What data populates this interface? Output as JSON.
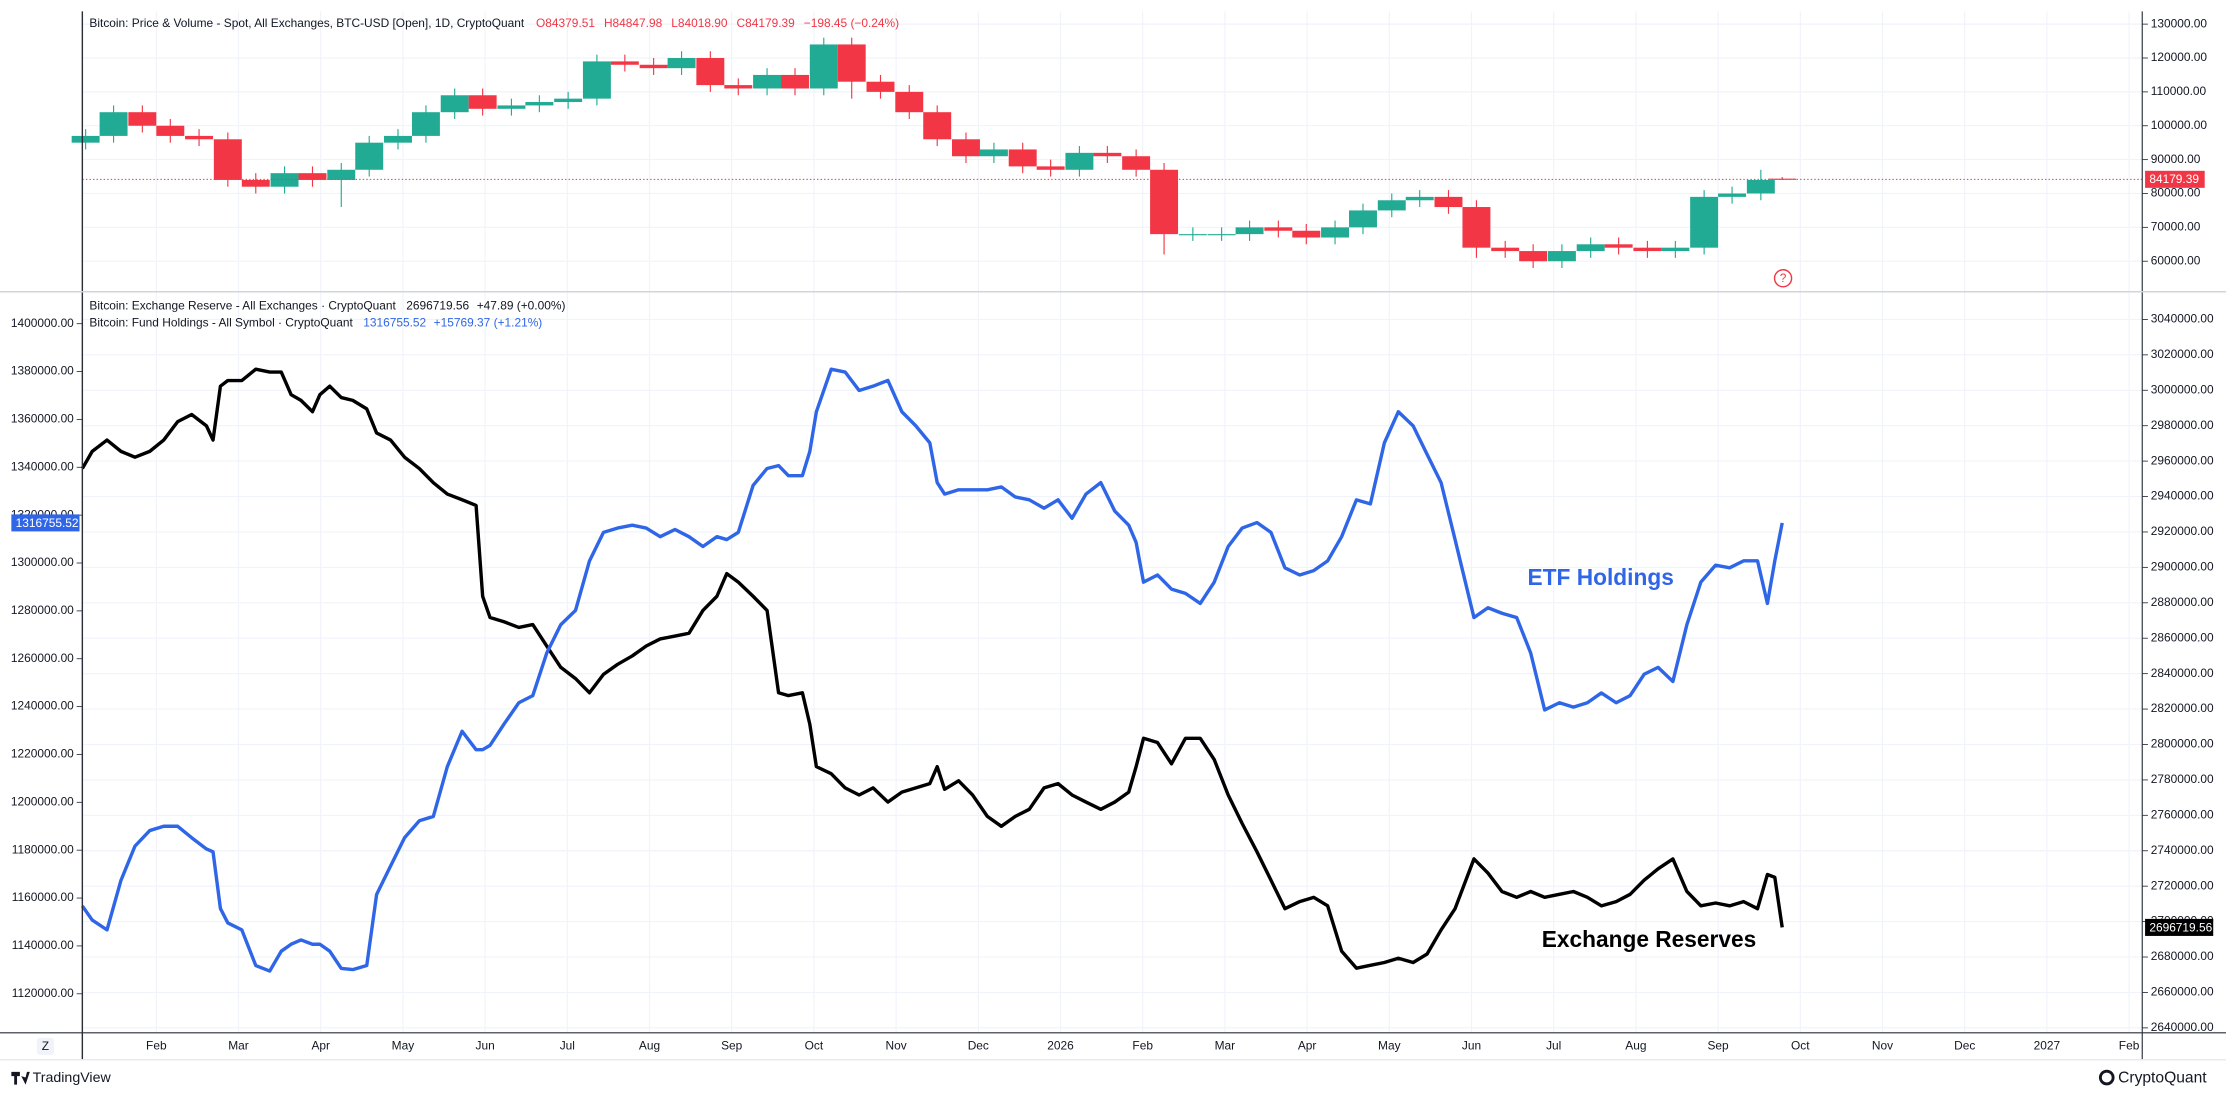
{
  "chart_data": [
    {
      "type": "candlestick",
      "title": "Bitcoin: Price & Volume - Spot, All Exchanges, BTC-USD [Open], 1D, CryptoQuant",
      "ohlc_labels": [
        "O",
        "H",
        "L",
        "C"
      ],
      "legend_labels": [
        "84379.51",
        "84847.98",
        "84018.90",
        "84179.39"
      ],
      "change": "−198.45 (−0.24%)",
      "up_color": "#22ab94",
      "down_color": "#f23645",
      "x": [
        0.14,
        0.48,
        0.83,
        1.17,
        1.52,
        1.87,
        2.21,
        2.56,
        2.9,
        3.25,
        3.59,
        3.94,
        4.28,
        4.63,
        4.97,
        5.32,
        5.66,
        6.01,
        6.36,
        6.7,
        7.05,
        7.39,
        7.74,
        8.08,
        8.43,
        8.77,
        9.12,
        9.46,
        9.81,
        10.16,
        10.5,
        10.85,
        11.19,
        11.54,
        11.88,
        12.23,
        12.57,
        12.92,
        13.26,
        13.61,
        13.96,
        14.3,
        14.65,
        14.99,
        15.34,
        15.68,
        16.03,
        16.37,
        16.72,
        17.06,
        17.41,
        17.75,
        18.1,
        18.45,
        18.79,
        19.14,
        19.48,
        19.83,
        20.17,
        20.52,
        20.78
      ],
      "open": [
        95000,
        97000,
        104000,
        100000,
        97000,
        96000,
        84000,
        82000,
        86000,
        84000,
        87000,
        95000,
        97000,
        104000,
        109000,
        105000,
        106000,
        107000,
        108000,
        119000,
        118000,
        117000,
        120000,
        112000,
        111000,
        115000,
        111000,
        124000,
        113000,
        110000,
        104000,
        96000,
        91000,
        93000,
        88000,
        87000,
        92000,
        91000,
        87000,
        68000,
        68000,
        68000,
        70000,
        69000,
        67000,
        70000,
        75000,
        78000,
        79000,
        76000,
        64000,
        63000,
        60000,
        63000,
        65000,
        64000,
        63000,
        64000,
        79000,
        80000,
        84379.51
      ],
      "high": [
        99000,
        106000,
        106000,
        102000,
        99000,
        98000,
        86000,
        88000,
        88000,
        89000,
        97000,
        99000,
        106000,
        111000,
        111000,
        108000,
        109000,
        110000,
        121000,
        121000,
        120000,
        122000,
        122000,
        114000,
        117000,
        117000,
        126000,
        126000,
        115000,
        112000,
        106000,
        98000,
        95000,
        95000,
        90000,
        94000,
        94000,
        93000,
        89000,
        70000,
        70000,
        72000,
        72000,
        71000,
        72000,
        77000,
        80000,
        81000,
        81000,
        78000,
        66000,
        65000,
        65000,
        67000,
        67000,
        66000,
        66000,
        81000,
        82000,
        87000,
        84847.98
      ],
      "low": [
        93000,
        95000,
        98000,
        95000,
        94000,
        82000,
        80000,
        80000,
        82000,
        76000,
        85000,
        93000,
        95000,
        102000,
        103000,
        103000,
        104000,
        105000,
        106000,
        116000,
        115000,
        115000,
        110000,
        109000,
        109000,
        109000,
        109000,
        108000,
        108000,
        102000,
        94000,
        89000,
        89000,
        86000,
        85000,
        85000,
        89000,
        85000,
        62000,
        66000,
        66000,
        66000,
        67000,
        65000,
        65000,
        68000,
        73000,
        76000,
        74000,
        61000,
        61000,
        58000,
        58000,
        61000,
        62000,
        61000,
        61000,
        62000,
        77000,
        78000,
        84018.9
      ],
      "close": [
        97000,
        104000,
        100000,
        97000,
        96000,
        84000,
        82000,
        86000,
        84000,
        87000,
        95000,
        97000,
        104000,
        109000,
        105000,
        106000,
        107000,
        108000,
        119000,
        118000,
        117000,
        120000,
        112000,
        111000,
        115000,
        111000,
        124000,
        113000,
        110000,
        104000,
        96000,
        91000,
        93000,
        88000,
        87000,
        92000,
        91000,
        87000,
        68000,
        68000,
        68000,
        70000,
        69000,
        67000,
        70000,
        75000,
        78000,
        79000,
        76000,
        64000,
        63000,
        60000,
        63000,
        65000,
        64000,
        63000,
        64000,
        79000,
        80000,
        84000,
        84179.39
      ],
      "xlim": [
        0.1,
        25.16
      ],
      "ylim": [
        51200,
        133770
      ],
      "yticks": [
        {
          "value": 60000,
          "label": "60000.00"
        },
        {
          "value": 70000,
          "label": "70000.00"
        },
        {
          "value": 80000,
          "label": "80000.00"
        },
        {
          "value": 90000,
          "label": "90000.00"
        },
        {
          "value": 100000,
          "label": "100000.00"
        },
        {
          "value": 110000,
          "label": "110000.00"
        },
        {
          "value": 120000,
          "label": "120000.00"
        },
        {
          "value": 130000,
          "label": "130000.00"
        }
      ],
      "grid": true
    },
    {
      "type": "line",
      "x": [
        0.1,
        0.22,
        0.4,
        0.57,
        0.74,
        0.92,
        1.09,
        1.26,
        1.43,
        1.61,
        1.69,
        1.78,
        1.87,
        2.04,
        2.21,
        2.38,
        2.52,
        2.64,
        2.76,
        2.9,
        2.99,
        3.11,
        3.25,
        3.39,
        3.56,
        3.68,
        3.85,
        4.02,
        4.2,
        4.37,
        4.54,
        4.72,
        4.89,
        4.97,
        5.06,
        5.23,
        5.41,
        5.58,
        5.75,
        5.92,
        6.1,
        6.27,
        6.44,
        6.61,
        6.79,
        6.96,
        7.13,
        7.31,
        7.48,
        7.65,
        7.82,
        7.94,
        8.08,
        8.26,
        8.43,
        8.57,
        8.69,
        8.86,
        8.95,
        9.03,
        9.21,
        9.38,
        9.55,
        9.72,
        9.9,
        10.07,
        10.24,
        10.41,
        10.5,
        10.59,
        10.76,
        10.93,
        11.11,
        11.28,
        11.45,
        11.62,
        11.8,
        11.97,
        12.14,
        12.31,
        12.49,
        12.66,
        12.83,
        12.92,
        13.01,
        13.18,
        13.35,
        13.52,
        13.7,
        13.87,
        14.04,
        14.21,
        14.39,
        14.56,
        14.73,
        14.91,
        15.08,
        15.25,
        15.42,
        15.6,
        15.77,
        15.94,
        16.11,
        16.29,
        16.46,
        16.63,
        16.8,
        17.03,
        17.2,
        17.37,
        17.55,
        17.72,
        17.89,
        18.07,
        18.24,
        18.41,
        18.58,
        18.76,
        18.93,
        19.1,
        19.27,
        19.45,
        19.62,
        19.79,
        19.97,
        20.14,
        20.31,
        20.48,
        20.6,
        20.69,
        20.78
      ],
      "series": [
        {
          "name": "Bitcoin: Exchange Reserve - All Exchanges · CryptoQuant",
          "change": "+47.89 (+0.00%)",
          "color": "#000000",
          "axis": "y2",
          "values": [
            2955800,
            2965500,
            2971900,
            2965500,
            2962200,
            2965500,
            2971900,
            2982300,
            2986300,
            2979900,
            2971900,
            3002300,
            3005500,
            3005500,
            3011900,
            3010300,
            3010300,
            2997500,
            2994300,
            2987900,
            2997500,
            3002300,
            2995900,
            2994300,
            2989500,
            2975900,
            2971900,
            2962200,
            2955800,
            2947800,
            2941400,
            2938200,
            2935000,
            2883700,
            2871700,
            2869300,
            2866100,
            2867700,
            2855600,
            2843600,
            2837200,
            2829200,
            2839600,
            2845200,
            2850000,
            2855600,
            2859600,
            2861200,
            2862800,
            2875700,
            2883700,
            2896500,
            2891700,
            2883700,
            2875700,
            2829200,
            2827600,
            2829200,
            2811500,
            2787500,
            2783500,
            2775500,
            2771500,
            2775500,
            2767500,
            2773100,
            2775500,
            2777900,
            2787500,
            2774700,
            2779500,
            2771500,
            2759400,
            2753800,
            2759400,
            2763400,
            2775500,
            2777900,
            2771500,
            2767500,
            2763400,
            2767500,
            2773100,
            2787500,
            2803500,
            2801100,
            2789100,
            2803500,
            2803500,
            2791500,
            2771500,
            2755400,
            2739400,
            2723400,
            2707300,
            2711300,
            2713700,
            2708900,
            2683300,
            2673700,
            2675300,
            2676900,
            2679300,
            2676900,
            2681700,
            2695300,
            2707300,
            2735400,
            2727400,
            2717000,
            2713700,
            2717000,
            2713700,
            2715400,
            2717000,
            2713700,
            2708900,
            2711300,
            2715400,
            2723400,
            2729800,
            2735400,
            2717000,
            2708900,
            2710500,
            2708900,
            2711300,
            2707300,
            2726600,
            2725000,
            2696719.56
          ]
        },
        {
          "name": "Bitcoin: Fund Holdings - All Symbol · CryptoQuant",
          "change": "+15769.37 (+1.21%)",
          "color": "#2f66e8",
          "axis": "y",
          "values": [
            1156700,
            1150800,
            1146700,
            1167400,
            1181700,
            1188200,
            1190000,
            1190000,
            1185200,
            1180500,
            1179300,
            1155600,
            1149600,
            1146700,
            1131800,
            1129500,
            1137800,
            1140700,
            1142500,
            1140700,
            1140700,
            1137800,
            1130600,
            1130100,
            1131800,
            1161500,
            1173400,
            1185200,
            1192300,
            1194100,
            1214900,
            1229700,
            1222000,
            1222000,
            1223800,
            1232700,
            1241600,
            1244600,
            1262400,
            1274200,
            1280200,
            1300900,
            1312800,
            1314600,
            1315800,
            1314600,
            1311000,
            1314000,
            1311000,
            1306900,
            1311000,
            1309800,
            1312800,
            1332400,
            1339500,
            1340700,
            1336500,
            1336500,
            1346600,
            1363200,
            1381000,
            1379800,
            1372100,
            1373900,
            1376300,
            1363200,
            1357300,
            1350200,
            1333600,
            1328800,
            1330600,
            1330600,
            1330600,
            1331800,
            1327600,
            1326400,
            1322900,
            1326400,
            1318700,
            1328800,
            1333600,
            1321700,
            1315800,
            1308600,
            1292000,
            1295000,
            1289100,
            1287300,
            1283100,
            1292000,
            1306900,
            1314600,
            1316900,
            1312800,
            1298000,
            1295000,
            1296800,
            1300900,
            1311000,
            1326400,
            1324700,
            1350200,
            1363200,
            1357300,
            1345400,
            1333600,
            1309800,
            1277200,
            1281300,
            1279000,
            1277200,
            1262400,
            1238600,
            1241600,
            1239800,
            1241600,
            1245700,
            1241600,
            1244600,
            1253500,
            1256400,
            1250500,
            1274200,
            1292000,
            1299100,
            1298000,
            1300900,
            1300900,
            1283100,
            1300900,
            1316755.52
          ]
        }
      ],
      "annotations": [
        "ETF Holdings",
        "Exchange Reserves"
      ],
      "xlim": [
        0.1,
        25.16
      ],
      "xticks": [
        {
          "value": 1,
          "label": "Feb"
        },
        {
          "value": 2,
          "label": "Mar"
        },
        {
          "value": 3,
          "label": "Apr"
        },
        {
          "value": 4,
          "label": "May"
        },
        {
          "value": 5,
          "label": "Jun"
        },
        {
          "value": 6,
          "label": "Jul"
        },
        {
          "value": 7,
          "label": "Aug"
        },
        {
          "value": 8,
          "label": "Sep"
        },
        {
          "value": 9,
          "label": "Oct"
        },
        {
          "value": 10,
          "label": "Nov"
        },
        {
          "value": 11,
          "label": "Dec"
        },
        {
          "value": 12,
          "label": "2026"
        },
        {
          "value": 13,
          "label": "Feb"
        },
        {
          "value": 14,
          "label": "Mar"
        },
        {
          "value": 15,
          "label": "Apr"
        },
        {
          "value": 16,
          "label": "May"
        },
        {
          "value": 17,
          "label": "Jun"
        },
        {
          "value": 18,
          "label": "Jul"
        },
        {
          "value": 19,
          "label": "Aug"
        },
        {
          "value": 20,
          "label": "Sep"
        },
        {
          "value": 21,
          "label": "Oct"
        },
        {
          "value": 22,
          "label": "Nov"
        },
        {
          "value": 23,
          "label": "Dec"
        },
        {
          "value": 24,
          "label": "2027"
        },
        {
          "value": 25,
          "label": "Feb"
        }
      ],
      "ylim": [
        1103980,
        1413050
      ],
      "yticks": [
        {
          "value": 1120000,
          "label": "1120000.00"
        },
        {
          "value": 1140000,
          "label": "1140000.00"
        },
        {
          "value": 1160000,
          "label": "1160000.00"
        },
        {
          "value": 1180000,
          "label": "1180000.00"
        },
        {
          "value": 1200000,
          "label": "1200000.00"
        },
        {
          "value": 1220000,
          "label": "1220000.00"
        },
        {
          "value": 1240000,
          "label": "1240000.00"
        },
        {
          "value": 1260000,
          "label": "1260000.00"
        },
        {
          "value": 1280000,
          "label": "1280000.00"
        },
        {
          "value": 1300000,
          "label": "1300000.00"
        },
        {
          "value": 1320000,
          "label": "1320000.00"
        },
        {
          "value": 1340000,
          "label": "1340000.00"
        },
        {
          "value": 1360000,
          "label": "1360000.00"
        },
        {
          "value": 1380000,
          "label": "1380000.00"
        },
        {
          "value": 1400000,
          "label": "1400000.00"
        }
      ],
      "y2lim": [
        2637600,
        3055230
      ],
      "y2ticks": [
        {
          "value": 2640000,
          "label": "2640000.00"
        },
        {
          "value": 2660000,
          "label": "2660000.00"
        },
        {
          "value": 2680000,
          "label": "2680000.00"
        },
        {
          "value": 2700000,
          "label": "2700000.00"
        },
        {
          "value": 2720000,
          "label": "2720000.00"
        },
        {
          "value": 2740000,
          "label": "2740000.00"
        },
        {
          "value": 2760000,
          "label": "2760000.00"
        },
        {
          "value": 2780000,
          "label": "2780000.00"
        },
        {
          "value": 2800000,
          "label": "2800000.00"
        },
        {
          "value": 2820000,
          "label": "2820000.00"
        },
        {
          "value": 2840000,
          "label": "2840000.00"
        },
        {
          "value": 2860000,
          "label": "2860000.00"
        },
        {
          "value": 2880000,
          "label": "2880000.00"
        },
        {
          "value": 2900000,
          "label": "2900000.00"
        },
        {
          "value": 2920000,
          "label": "2920000.00"
        },
        {
          "value": 2940000,
          "label": "2940000.00"
        },
        {
          "value": 2960000,
          "label": "2960000.00"
        },
        {
          "value": 2980000,
          "label": "2980000.00"
        },
        {
          "value": 3000000,
          "label": "3000000.00"
        },
        {
          "value": 3020000,
          "label": "3020000.00"
        },
        {
          "value": 3040000,
          "label": "3040000.00"
        }
      ],
      "grid": true
    }
  ],
  "ui": {
    "event_marker": "?",
    "scale_button": "Z",
    "brand_left": "TradingView",
    "brand_right": "CryptoQuant"
  }
}
